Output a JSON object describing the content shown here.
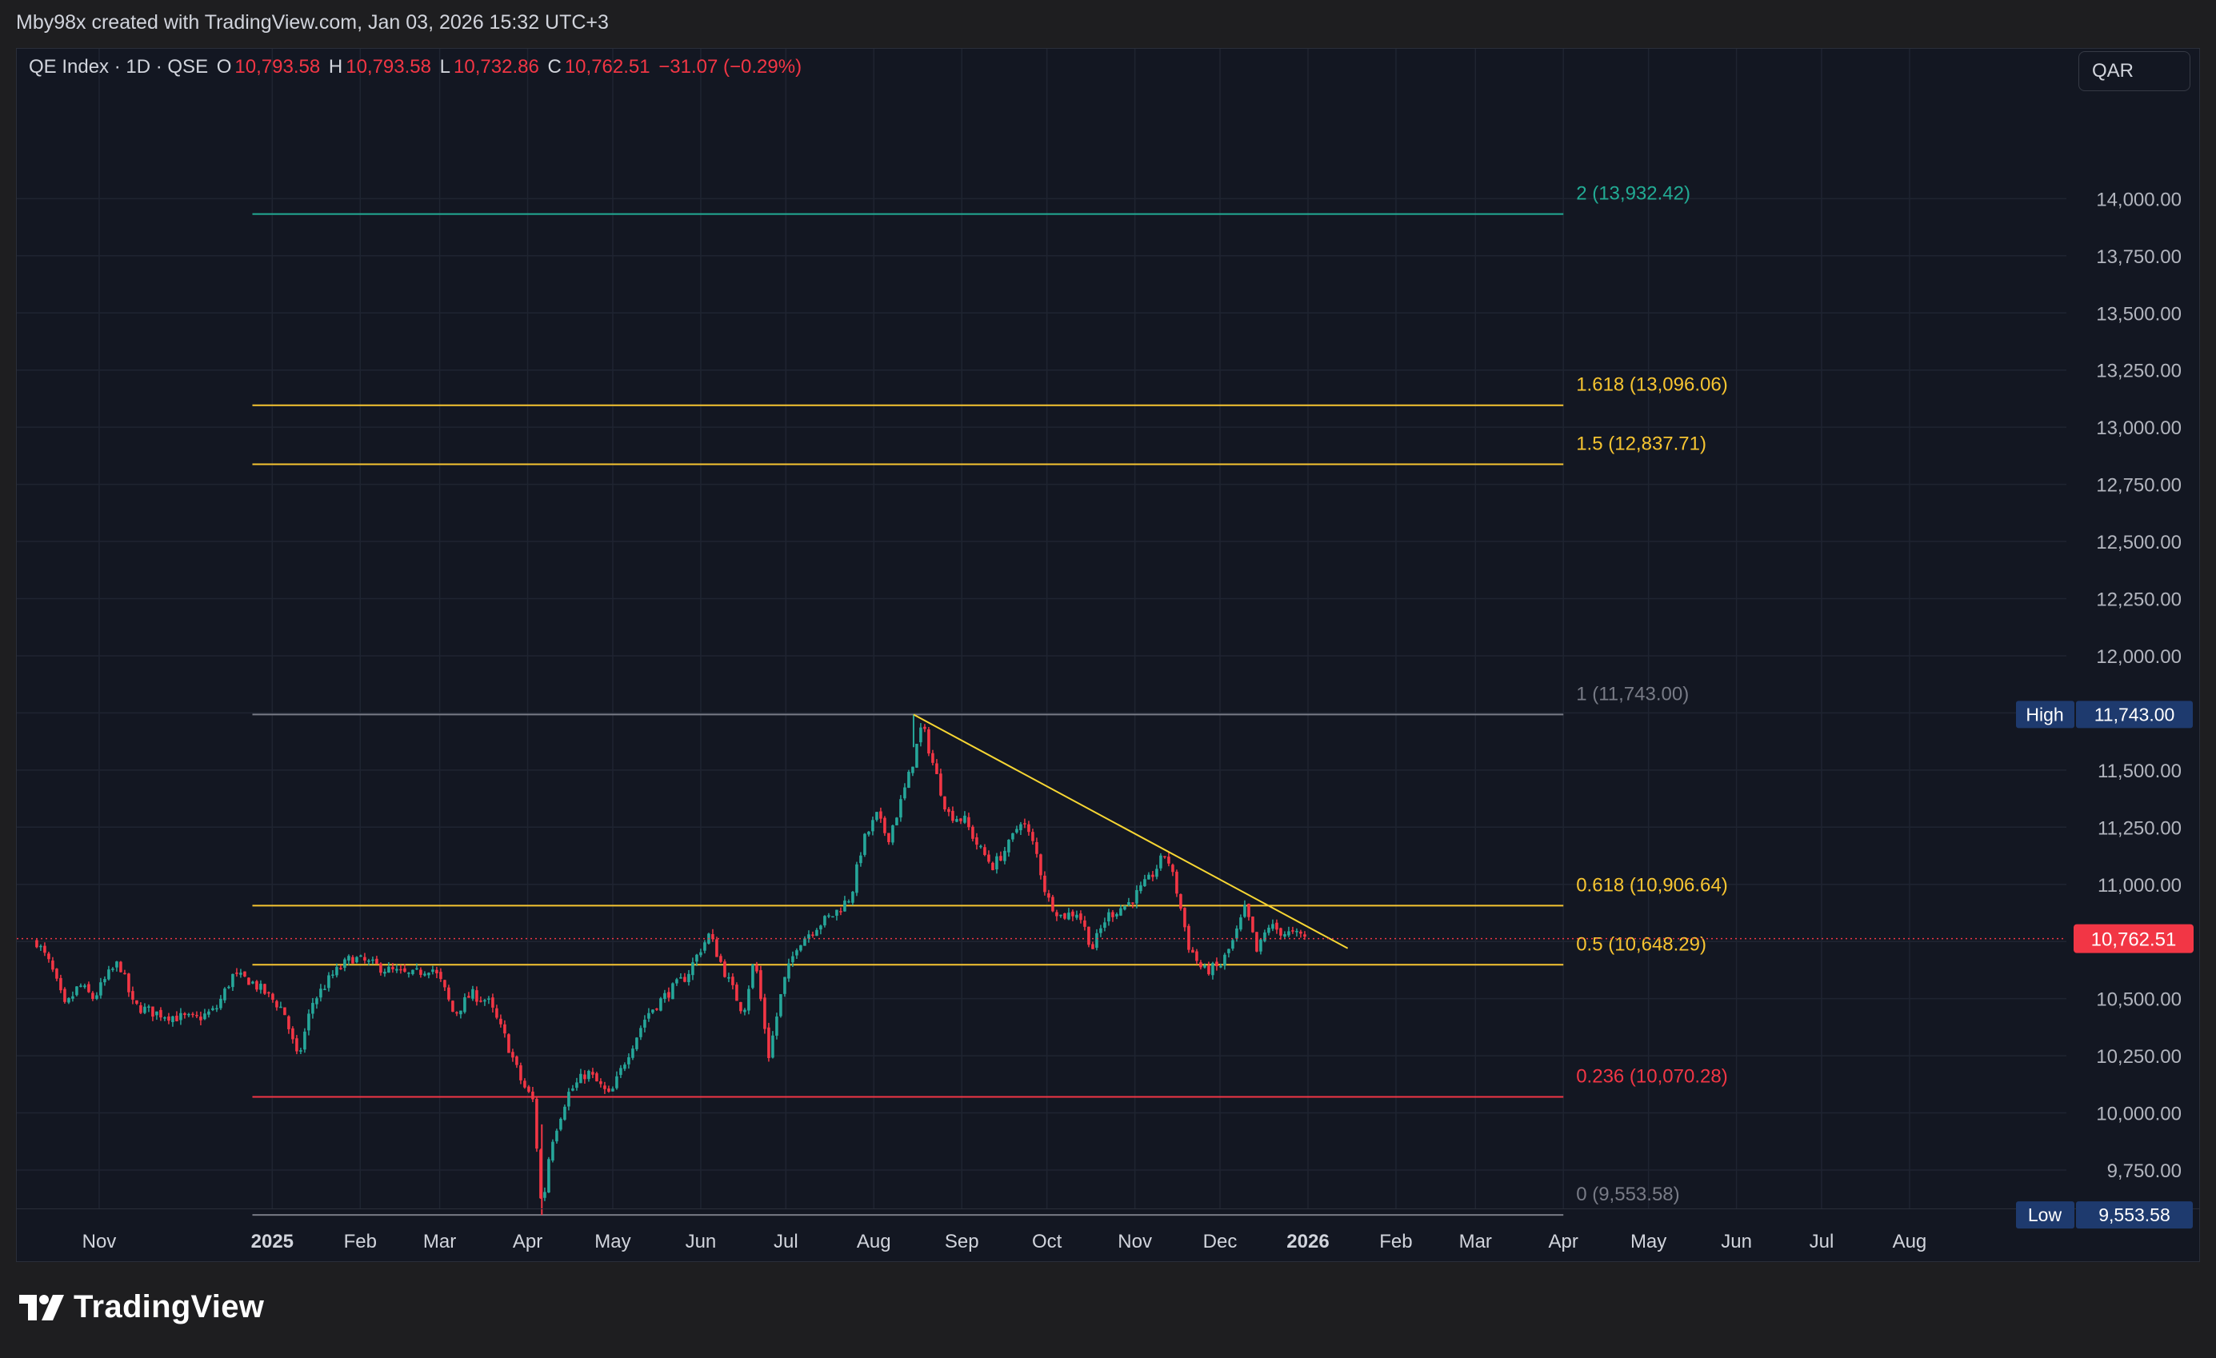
{
  "header": {
    "credit": "Mby98x created with TradingView.com, Jan 03, 2026 15:32 UTC+3"
  },
  "legend": {
    "symbol": "QE Index · 1D · QSE",
    "o_label": "O",
    "o_value": "10,793.58",
    "h_label": "H",
    "h_value": "10,793.58",
    "l_label": "L",
    "l_value": "10,732.86",
    "c_label": "C",
    "c_value": "10,762.51",
    "change": "−31.07 (−0.29%)"
  },
  "currency": "QAR",
  "brand": "TradingView",
  "colors": {
    "background": "#131722",
    "up": "#26a69a",
    "down": "#f23645",
    "fib_gold": "#f7c531",
    "fib_teal": "#22ab94",
    "fib_gray": "#787b86",
    "fib_red": "#f23645",
    "trendline": "#f7d633"
  },
  "chart_data": {
    "type": "candlestick",
    "symbol": "QE Index",
    "interval": "1D",
    "exchange": "QSE",
    "ylim": [
      9400,
      14300
    ],
    "y_ticks": [
      {
        "value": 9750,
        "label": "9,750.00"
      },
      {
        "value": 10000,
        "label": "10,000.00"
      },
      {
        "value": 10250,
        "label": "10,250.00"
      },
      {
        "value": 10500,
        "label": "10,500.00"
      },
      {
        "value": 10750,
        "label": "10,750.00"
      },
      {
        "value": 11000,
        "label": "11,000.00"
      },
      {
        "value": 11250,
        "label": "11,250.00"
      },
      {
        "value": 11500,
        "label": "11,500.00"
      },
      {
        "value": 11750,
        "label": "11,750.00"
      },
      {
        "value": 12000,
        "label": "12,000.00"
      },
      {
        "value": 12250,
        "label": "12,250.00"
      },
      {
        "value": 12500,
        "label": "12,500.00"
      },
      {
        "value": 12750,
        "label": "12,750.00"
      },
      {
        "value": 13000,
        "label": "13,000.00"
      },
      {
        "value": 13250,
        "label": "13,250.00"
      },
      {
        "value": 13500,
        "label": "13,500.00"
      },
      {
        "value": 13750,
        "label": "13,750.00"
      },
      {
        "value": 14000,
        "label": "14,000.00"
      }
    ],
    "x_ticks": [
      {
        "label": "Nov",
        "date": "2024-11-01",
        "bold": false
      },
      {
        "label": "2025",
        "date": "2025-01-01",
        "bold": true
      },
      {
        "label": "Feb",
        "date": "2025-02-01",
        "bold": false
      },
      {
        "label": "Mar",
        "date": "2025-03-01",
        "bold": false
      },
      {
        "label": "Apr",
        "date": "2025-04-01",
        "bold": false
      },
      {
        "label": "May",
        "date": "2025-05-01",
        "bold": false
      },
      {
        "label": "Jun",
        "date": "2025-06-01",
        "bold": false
      },
      {
        "label": "Jul",
        "date": "2025-07-01",
        "bold": false
      },
      {
        "label": "Aug",
        "date": "2025-08-01",
        "bold": false
      },
      {
        "label": "Sep",
        "date": "2025-09-01",
        "bold": false
      },
      {
        "label": "Oct",
        "date": "2025-10-01",
        "bold": false
      },
      {
        "label": "Nov",
        "date": "2025-11-01",
        "bold": false
      },
      {
        "label": "Dec",
        "date": "2025-12-01",
        "bold": false
      },
      {
        "label": "2026",
        "date": "2026-01-01",
        "bold": true
      },
      {
        "label": "Feb",
        "date": "2026-02-01",
        "bold": false
      },
      {
        "label": "Mar",
        "date": "2026-03-01",
        "bold": false
      },
      {
        "label": "Apr",
        "date": "2026-04-01",
        "bold": false
      },
      {
        "label": "May",
        "date": "2026-05-01",
        "bold": false
      },
      {
        "label": "Jun",
        "date": "2026-06-01",
        "bold": false
      },
      {
        "label": "Jul",
        "date": "2026-07-01",
        "bold": false
      },
      {
        "label": "Aug",
        "date": "2026-08-01",
        "bold": false
      }
    ],
    "price_path": [
      [
        "2024-10-10",
        10750
      ],
      [
        "2024-10-15",
        10640
      ],
      [
        "2024-10-20",
        10460
      ],
      [
        "2024-10-25",
        10560
      ],
      [
        "2024-10-30",
        10500
      ],
      [
        "2024-11-04",
        10600
      ],
      [
        "2024-11-08",
        10660
      ],
      [
        "2024-11-13",
        10470
      ],
      [
        "2024-11-20",
        10440
      ],
      [
        "2024-11-28",
        10420
      ],
      [
        "2024-12-05",
        10410
      ],
      [
        "2024-12-12",
        10450
      ],
      [
        "2024-12-18",
        10600
      ],
      [
        "2024-12-24",
        10580
      ],
      [
        "2024-12-30",
        10520
      ],
      [
        "2025-01-05",
        10450
      ],
      [
        "2025-01-10",
        10230
      ],
      [
        "2025-01-15",
        10480
      ],
      [
        "2025-01-22",
        10600
      ],
      [
        "2025-01-29",
        10680
      ],
      [
        "2025-02-05",
        10650
      ],
      [
        "2025-02-12",
        10620
      ],
      [
        "2025-02-19",
        10600
      ],
      [
        "2025-02-26",
        10640
      ],
      [
        "2025-03-02",
        10560
      ],
      [
        "2025-03-06",
        10430
      ],
      [
        "2025-03-12",
        10520
      ],
      [
        "2025-03-18",
        10490
      ],
      [
        "2025-03-24",
        10330
      ],
      [
        "2025-03-30",
        10130
      ],
      [
        "2025-04-03",
        10050
      ],
      [
        "2025-04-06",
        9560
      ],
      [
        "2025-04-09",
        9860
      ],
      [
        "2025-04-15",
        10080
      ],
      [
        "2025-04-22",
        10180
      ],
      [
        "2025-04-30",
        10070
      ],
      [
        "2025-05-06",
        10250
      ],
      [
        "2025-05-13",
        10430
      ],
      [
        "2025-05-20",
        10520
      ],
      [
        "2025-05-27",
        10600
      ],
      [
        "2025-06-01",
        10720
      ],
      [
        "2025-06-04",
        10780
      ],
      [
        "2025-06-10",
        10600
      ],
      [
        "2025-06-16",
        10440
      ],
      [
        "2025-06-20",
        10680
      ],
      [
        "2025-06-25",
        10250
      ],
      [
        "2025-06-30",
        10560
      ],
      [
        "2025-07-05",
        10740
      ],
      [
        "2025-07-12",
        10820
      ],
      [
        "2025-07-18",
        10870
      ],
      [
        "2025-07-24",
        10950
      ],
      [
        "2025-07-28",
        11180
      ],
      [
        "2025-08-02",
        11300
      ],
      [
        "2025-08-06",
        11200
      ],
      [
        "2025-08-10",
        11340
      ],
      [
        "2025-08-14",
        11500
      ],
      [
        "2025-08-18",
        11700
      ],
      [
        "2025-08-22",
        11520
      ],
      [
        "2025-08-27",
        11310
      ],
      [
        "2025-09-02",
        11280
      ],
      [
        "2025-09-07",
        11160
      ],
      [
        "2025-09-12",
        11080
      ],
      [
        "2025-09-18",
        11180
      ],
      [
        "2025-09-22",
        11290
      ],
      [
        "2025-09-27",
        11150
      ],
      [
        "2025-10-01",
        10940
      ],
      [
        "2025-10-06",
        10860
      ],
      [
        "2025-10-12",
        10880
      ],
      [
        "2025-10-17",
        10720
      ],
      [
        "2025-10-22",
        10860
      ],
      [
        "2025-10-30",
        10920
      ],
      [
        "2025-11-06",
        11020
      ],
      [
        "2025-11-12",
        11140
      ],
      [
        "2025-11-16",
        10960
      ],
      [
        "2025-11-20",
        10730
      ],
      [
        "2025-11-25",
        10620
      ],
      [
        "2025-12-01",
        10640
      ],
      [
        "2025-12-06",
        10760
      ],
      [
        "2025-12-10",
        10900
      ],
      [
        "2025-12-14",
        10700
      ],
      [
        "2025-12-18",
        10820
      ],
      [
        "2025-12-23",
        10790
      ],
      [
        "2025-12-31",
        10770
      ]
    ],
    "fib_levels": [
      {
        "ratio": "2",
        "value": 13932.42,
        "label": "2 (13,932.42)",
        "color": "#22ab94"
      },
      {
        "ratio": "1.618",
        "value": 13096.06,
        "label": "1.618 (13,096.06)",
        "color": "#f7c531"
      },
      {
        "ratio": "1.5",
        "value": 12837.71,
        "label": "1.5 (12,837.71)",
        "color": "#f7c531"
      },
      {
        "ratio": "1",
        "value": 11743.0,
        "label": "1 (11,743.00)",
        "color": "#787b86"
      },
      {
        "ratio": "0.618",
        "value": 10906.64,
        "label": "0.618 (10,906.64)",
        "color": "#f7c531"
      },
      {
        "ratio": "0.5",
        "value": 10648.29,
        "label": "0.5 (10,648.29)",
        "color": "#f7c531"
      },
      {
        "ratio": "0.236",
        "value": 10070.28,
        "label": "0.236 (10,070.28)",
        "color": "#f23645"
      },
      {
        "ratio": "0",
        "value": 9553.58,
        "label": "0 (9,553.58)",
        "color": "#787b86"
      }
    ],
    "fib_range": {
      "start": "2024-12-25",
      "end": "2026-04-01"
    },
    "trendline": {
      "from": {
        "date": "2025-08-15",
        "value": 11743
      },
      "to": {
        "date": "2026-01-15",
        "value": 10720
      }
    },
    "last_price": {
      "value": 10762.51,
      "label": "10,762.51"
    },
    "high_marker": {
      "label": "High",
      "value": 11743.0,
      "value_label": "11,743.00"
    },
    "low_marker": {
      "label": "Low",
      "value": 9553.58,
      "value_label": "9,553.58"
    }
  }
}
